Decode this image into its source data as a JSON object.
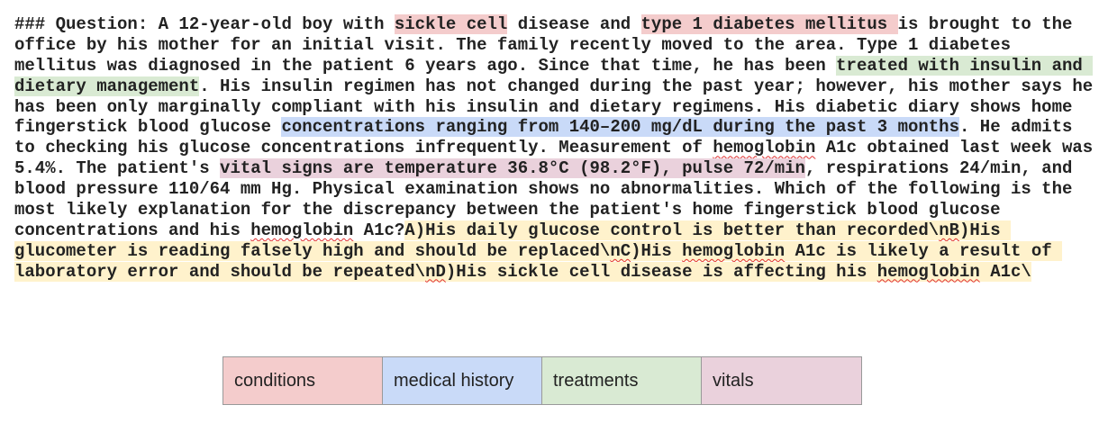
{
  "colors": {
    "conditions": "#f4cccc",
    "medical_history": "#c9daf8",
    "treatments": "#d9ead3",
    "vitals": "#ead1dc",
    "answers": "#fff2cc"
  },
  "lines": [
    [
      {
        "t": "### Question: A 12-year-old boy with "
      },
      {
        "t": "sickle cell",
        "c": "conditions"
      },
      {
        "t": " disease and "
      },
      {
        "t": "type 1 diabetes mellitus ",
        "c": "conditions"
      },
      {
        "t": "is brought to the"
      }
    ],
    [
      {
        "t": "office by his mother for an initial visit. The family recently moved to the area. Type 1 diabetes"
      }
    ],
    [
      {
        "t": "mellitus was diagnosed in the patient 6 years ago. Since that time, he has been "
      },
      {
        "t": "treated with insulin and ",
        "c": "treatments"
      }
    ],
    [
      {
        "t": "dietary management",
        "c": "treatments"
      },
      {
        "t": ". His insulin regimen has not changed during the past year; however, his mother says he"
      }
    ],
    [
      {
        "t": "has been only marginally compliant with his insulin and dietary regimens. His diabetic diary shows home"
      }
    ],
    [
      {
        "t": "fingerstick blood glucose "
      },
      {
        "t": "concentrations ranging from 140–200 mg/dL during the past 3 months",
        "c": "medical_history"
      },
      {
        "t": ". He admits"
      }
    ],
    [
      {
        "t": "to checking his glucose concentrations infrequently. Measurement of "
      },
      {
        "t": "hemoglobin",
        "sp": true
      },
      {
        "t": " A1c obtained last week was"
      }
    ],
    [
      {
        "t": "5.4%. The patient's "
      },
      {
        "t": "vital signs are temperature 36.8°C (98.2°F), pulse 72/min",
        "c": "vitals"
      },
      {
        "t": ", respirations 24/min, and"
      }
    ],
    [
      {
        "t": "blood pressure 110/64 mm Hg. Physical examination shows no abnormalities. Which of the following is the"
      }
    ],
    [
      {
        "t": "most likely explanation for the discrepancy between the patient's home fingerstick blood glucose"
      }
    ],
    [
      {
        "t": "concentrations and his "
      },
      {
        "t": "hemoglobin",
        "sp": true
      },
      {
        "t": " A1c?"
      },
      {
        "t": "A)His daily glucose control is better than recorded\\",
        "c": "answers"
      },
      {
        "t": "nB",
        "c": "answers",
        "sp": true
      },
      {
        "t": ")His ",
        "c": "answers"
      }
    ],
    [
      {
        "t": "glucometer is reading falsely high and should be replaced\\",
        "c": "answers"
      },
      {
        "t": "nC",
        "c": "answers",
        "sp": true
      },
      {
        "t": ")His ",
        "c": "answers"
      },
      {
        "t": "hemoglobin",
        "c": "answers",
        "sp": true
      },
      {
        "t": " A1c is likely a result of ",
        "c": "answers"
      }
    ],
    [
      {
        "t": "laboratory error and should be repeated\\",
        "c": "answers"
      },
      {
        "t": "nD",
        "c": "answers",
        "sp": true
      },
      {
        "t": ")His sickle cell disease is affecting his ",
        "c": "answers"
      },
      {
        "t": "hemoglobin",
        "c": "answers",
        "sp": true
      },
      {
        "t": " A1c\\",
        "c": "answers"
      }
    ]
  ],
  "legend": [
    {
      "key": "conditions",
      "label": "conditions"
    },
    {
      "key": "medical_history",
      "label": "medical history"
    },
    {
      "key": "treatments",
      "label": "treatments"
    },
    {
      "key": "vitals",
      "label": "vitals"
    }
  ]
}
